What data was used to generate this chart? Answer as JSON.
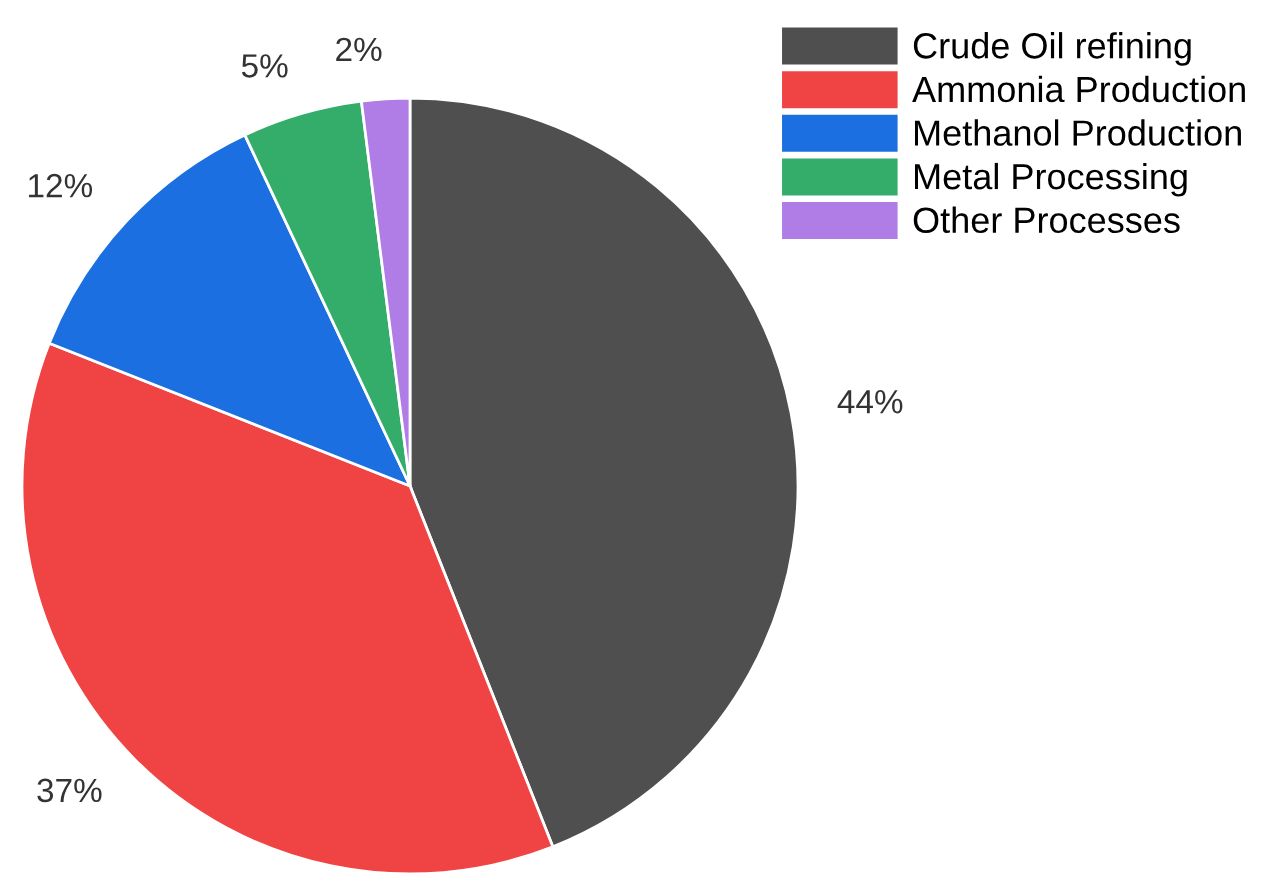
{
  "chart_data": {
    "type": "pie",
    "categories": [
      "Crude Oil refining",
      "Ammonia Production",
      "Methanol Production",
      "Metal Processing",
      "Other Processes"
    ],
    "values": [
      44,
      37,
      12,
      5,
      2
    ],
    "colors": [
      "#4f4f4f",
      "#f04343",
      "#1b6fe0",
      "#34ad6b",
      "#b07ce6"
    ],
    "value_labels": [
      "44%",
      "37%",
      "12%",
      "5%",
      "2%"
    ],
    "legend": "top right"
  }
}
